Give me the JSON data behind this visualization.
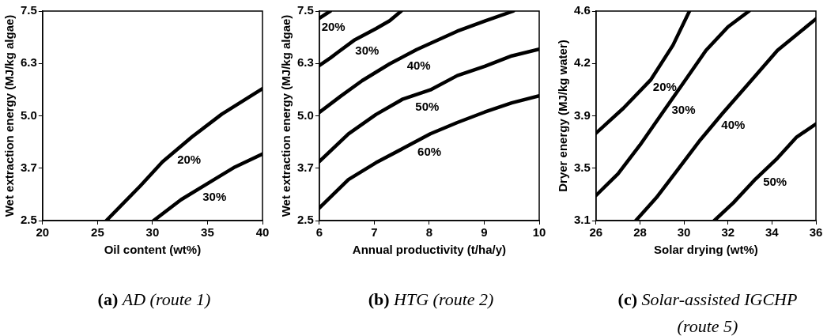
{
  "chart_data": [
    {
      "type": "line",
      "title": "(a) AD (route 1)",
      "xlabel": "Oil content (wt%)",
      "ylabel": "Wet extraction energy (MJ/kg algae)",
      "xlim": [
        20,
        40
      ],
      "xticks": [
        20,
        25,
        30,
        35,
        40
      ],
      "ylim": [
        2.5,
        7.5
      ],
      "yticks": [
        {
          "value": 2.5,
          "label": "2.5"
        },
        {
          "value": 3.75,
          "label": "3.7"
        },
        {
          "value": 5.0,
          "label": "5.0"
        },
        {
          "value": 6.25,
          "label": "6.3"
        },
        {
          "value": 7.5,
          "label": "7.5"
        }
      ],
      "grid": false,
      "legend": false,
      "marker": "none",
      "line_style": "solid",
      "series": [
        {
          "name": "20%",
          "color": "#000000",
          "x": [
            25.8,
            28.9,
            30.9,
            33.6,
            36.3,
            40
          ],
          "values": [
            2.5,
            3.33,
            3.9,
            4.5,
            5.04,
            5.65
          ]
        },
        {
          "name": "30%",
          "color": "#000000",
          "x": [
            30.1,
            32.6,
            35.6,
            37.5,
            40
          ],
          "values": [
            2.5,
            3.0,
            3.48,
            3.78,
            4.09
          ]
        }
      ]
    },
    {
      "type": "line",
      "title": "(b) HTG (route 2)",
      "xlabel": "Annual productivity (t/ha/y)",
      "ylabel": "Wet extraction energy (MJ/kg algae)",
      "xlim": [
        6,
        10
      ],
      "xticks": [
        6,
        7,
        8,
        9,
        10
      ],
      "ylim": [
        2.5,
        7.5
      ],
      "yticks": [
        {
          "value": 2.5,
          "label": "2.5"
        },
        {
          "value": 3.75,
          "label": "3.7"
        },
        {
          "value": 5.0,
          "label": "5.0"
        },
        {
          "value": 6.25,
          "label": "6.3"
        },
        {
          "value": 7.5,
          "label": "7.5"
        }
      ],
      "grid": false,
      "legend": false,
      "marker": "none",
      "line_style": "solid",
      "series": [
        {
          "name": "20%",
          "color": "#000000",
          "x": [
            6,
            6.2
          ],
          "values": [
            7.33,
            7.5
          ]
        },
        {
          "name": "30%",
          "color": "#000000",
          "x": [
            6,
            6.2,
            6.34,
            6.63,
            7.03,
            7.28,
            7.49
          ],
          "values": [
            6.2,
            6.38,
            6.52,
            6.8,
            7.08,
            7.27,
            7.5
          ]
        },
        {
          "name": "40%",
          "color": "#000000",
          "x": [
            6,
            6.39,
            6.78,
            7.28,
            7.77,
            8.51,
            9.01,
            9.53
          ],
          "values": [
            5.08,
            5.47,
            5.84,
            6.24,
            6.58,
            7.02,
            7.26,
            7.5
          ]
        },
        {
          "name": "50%",
          "color": "#000000",
          "x": [
            6,
            6.53,
            7.03,
            7.52,
            8.02,
            8.51,
            9.01,
            9.5,
            10
          ],
          "values": [
            3.91,
            4.57,
            5.03,
            5.4,
            5.62,
            5.96,
            6.18,
            6.43,
            6.59
          ]
        },
        {
          "name": "60%",
          "color": "#000000",
          "x": [
            6,
            6.53,
            7.03,
            7.52,
            8.02,
            8.51,
            9.01,
            9.5,
            10
          ],
          "values": [
            2.8,
            3.48,
            3.88,
            4.22,
            4.57,
            4.84,
            5.09,
            5.31,
            5.48
          ]
        }
      ]
    },
    {
      "type": "line",
      "title": "(c) Solar-assisted IGCHP (route 5)",
      "xlabel": "Solar drying (wt%)",
      "ylabel": "Dryer energy (MJ/kg water)",
      "xlim": [
        26,
        36
      ],
      "xticks": [
        26,
        28,
        30,
        32,
        34,
        36
      ],
      "ylim": [
        3.1,
        4.6
      ],
      "yticks": [
        {
          "value": 3.1,
          "label": "3.1"
        },
        {
          "value": 3.475,
          "label": "3.5"
        },
        {
          "value": 3.85,
          "label": "3.9"
        },
        {
          "value": 4.225,
          "label": "4.2"
        },
        {
          "value": 4.6,
          "label": "4.6"
        }
      ],
      "grid": false,
      "legend": false,
      "marker": "none",
      "line_style": "solid",
      "series": [
        {
          "name": "20%",
          "color": "#000000",
          "x": [
            26,
            27.25,
            28.5,
            29.5,
            30.25
          ],
          "values": [
            3.726,
            3.905,
            4.11,
            4.356,
            4.6
          ]
        },
        {
          "name": "30%",
          "color": "#000000",
          "x": [
            26,
            27,
            28,
            29,
            30,
            31,
            32,
            32.96
          ],
          "values": [
            3.28,
            3.435,
            3.641,
            3.867,
            4.092,
            4.318,
            4.487,
            4.6
          ]
        },
        {
          "name": "40%",
          "color": "#000000",
          "x": [
            27.81,
            28.75,
            29.75,
            30.75,
            31.75,
            33,
            34.25,
            36
          ],
          "values": [
            3.1,
            3.265,
            3.472,
            3.679,
            3.867,
            4.092,
            4.318,
            4.544
          ]
        },
        {
          "name": "50%",
          "color": "#000000",
          "x": [
            31.38,
            32.25,
            33.25,
            34.25,
            35.125,
            36
          ],
          "values": [
            3.1,
            3.228,
            3.397,
            3.547,
            3.698,
            3.792
          ]
        }
      ]
    }
  ]
}
